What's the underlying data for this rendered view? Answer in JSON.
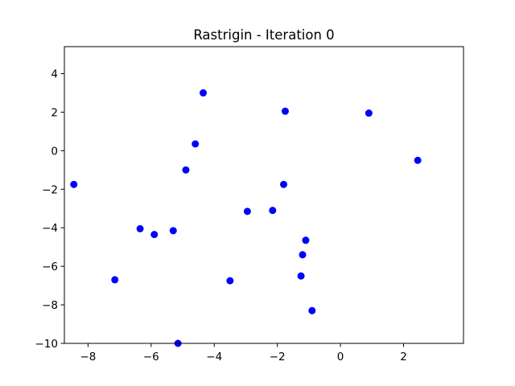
{
  "chart_data": {
    "type": "scatter",
    "title": "Rastrigin - Iteration 0",
    "xlabel": "",
    "ylabel": "",
    "xlim": [
      -8.75,
      3.9
    ],
    "ylim": [
      -10,
      5.4
    ],
    "xticks": [
      -8,
      -6,
      -4,
      -2,
      0,
      2
    ],
    "yticks": [
      -10,
      -8,
      -6,
      -4,
      -2,
      0,
      2,
      4
    ],
    "grid": false,
    "marker_color": "#0000ff",
    "points": [
      {
        "x": -8.45,
        "y": -1.75
      },
      {
        "x": -7.15,
        "y": -6.7
      },
      {
        "x": -6.35,
        "y": -4.05
      },
      {
        "x": -5.9,
        "y": -4.35
      },
      {
        "x": -5.3,
        "y": -4.15
      },
      {
        "x": -5.15,
        "y": -10.0
      },
      {
        "x": -4.9,
        "y": -1.0
      },
      {
        "x": -4.6,
        "y": 0.35
      },
      {
        "x": -4.35,
        "y": 3.0
      },
      {
        "x": -3.5,
        "y": -6.75
      },
      {
        "x": -2.95,
        "y": -3.15
      },
      {
        "x": -2.15,
        "y": -3.1
      },
      {
        "x": -1.8,
        "y": -1.75
      },
      {
        "x": -1.75,
        "y": 2.05
      },
      {
        "x": -1.25,
        "y": -6.5
      },
      {
        "x": -1.2,
        "y": -5.4
      },
      {
        "x": -1.1,
        "y": -4.65
      },
      {
        "x": -0.9,
        "y": -8.3
      },
      {
        "x": 0.9,
        "y": 1.95
      },
      {
        "x": 2.45,
        "y": -0.5
      }
    ]
  }
}
